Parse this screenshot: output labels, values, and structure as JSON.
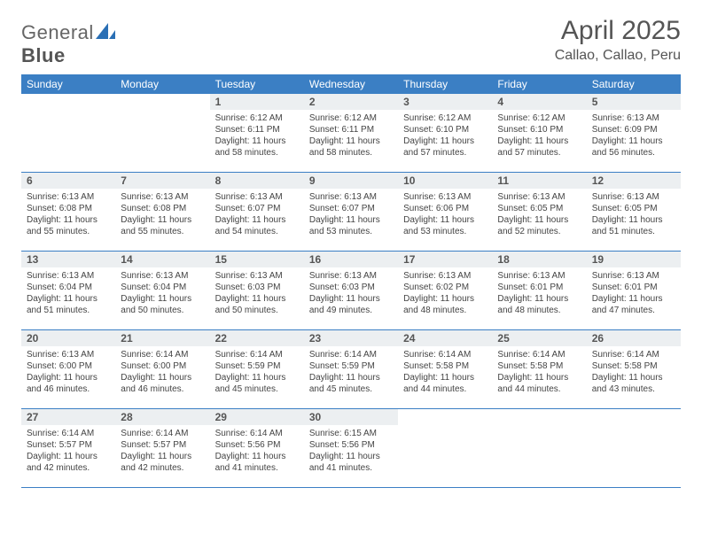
{
  "brand": {
    "part1": "General",
    "part2": "Blue"
  },
  "title": "April 2025",
  "location": "Callao, Callao, Peru",
  "colors": {
    "header_bg": "#3b7fc4",
    "header_text": "#ffffff",
    "daynum_bg": "#eceff1",
    "border": "#3b7fc4",
    "logo_blue": "#2a6fb5"
  },
  "dayNames": [
    "Sunday",
    "Monday",
    "Tuesday",
    "Wednesday",
    "Thursday",
    "Friday",
    "Saturday"
  ],
  "weeks": [
    [
      null,
      null,
      {
        "n": "1",
        "sr": "Sunrise: 6:12 AM",
        "ss": "Sunset: 6:11 PM",
        "dl": "Daylight: 11 hours and 58 minutes."
      },
      {
        "n": "2",
        "sr": "Sunrise: 6:12 AM",
        "ss": "Sunset: 6:11 PM",
        "dl": "Daylight: 11 hours and 58 minutes."
      },
      {
        "n": "3",
        "sr": "Sunrise: 6:12 AM",
        "ss": "Sunset: 6:10 PM",
        "dl": "Daylight: 11 hours and 57 minutes."
      },
      {
        "n": "4",
        "sr": "Sunrise: 6:12 AM",
        "ss": "Sunset: 6:10 PM",
        "dl": "Daylight: 11 hours and 57 minutes."
      },
      {
        "n": "5",
        "sr": "Sunrise: 6:13 AM",
        "ss": "Sunset: 6:09 PM",
        "dl": "Daylight: 11 hours and 56 minutes."
      }
    ],
    [
      {
        "n": "6",
        "sr": "Sunrise: 6:13 AM",
        "ss": "Sunset: 6:08 PM",
        "dl": "Daylight: 11 hours and 55 minutes."
      },
      {
        "n": "7",
        "sr": "Sunrise: 6:13 AM",
        "ss": "Sunset: 6:08 PM",
        "dl": "Daylight: 11 hours and 55 minutes."
      },
      {
        "n": "8",
        "sr": "Sunrise: 6:13 AM",
        "ss": "Sunset: 6:07 PM",
        "dl": "Daylight: 11 hours and 54 minutes."
      },
      {
        "n": "9",
        "sr": "Sunrise: 6:13 AM",
        "ss": "Sunset: 6:07 PM",
        "dl": "Daylight: 11 hours and 53 minutes."
      },
      {
        "n": "10",
        "sr": "Sunrise: 6:13 AM",
        "ss": "Sunset: 6:06 PM",
        "dl": "Daylight: 11 hours and 53 minutes."
      },
      {
        "n": "11",
        "sr": "Sunrise: 6:13 AM",
        "ss": "Sunset: 6:05 PM",
        "dl": "Daylight: 11 hours and 52 minutes."
      },
      {
        "n": "12",
        "sr": "Sunrise: 6:13 AM",
        "ss": "Sunset: 6:05 PM",
        "dl": "Daylight: 11 hours and 51 minutes."
      }
    ],
    [
      {
        "n": "13",
        "sr": "Sunrise: 6:13 AM",
        "ss": "Sunset: 6:04 PM",
        "dl": "Daylight: 11 hours and 51 minutes."
      },
      {
        "n": "14",
        "sr": "Sunrise: 6:13 AM",
        "ss": "Sunset: 6:04 PM",
        "dl": "Daylight: 11 hours and 50 minutes."
      },
      {
        "n": "15",
        "sr": "Sunrise: 6:13 AM",
        "ss": "Sunset: 6:03 PM",
        "dl": "Daylight: 11 hours and 50 minutes."
      },
      {
        "n": "16",
        "sr": "Sunrise: 6:13 AM",
        "ss": "Sunset: 6:03 PM",
        "dl": "Daylight: 11 hours and 49 minutes."
      },
      {
        "n": "17",
        "sr": "Sunrise: 6:13 AM",
        "ss": "Sunset: 6:02 PM",
        "dl": "Daylight: 11 hours and 48 minutes."
      },
      {
        "n": "18",
        "sr": "Sunrise: 6:13 AM",
        "ss": "Sunset: 6:01 PM",
        "dl": "Daylight: 11 hours and 48 minutes."
      },
      {
        "n": "19",
        "sr": "Sunrise: 6:13 AM",
        "ss": "Sunset: 6:01 PM",
        "dl": "Daylight: 11 hours and 47 minutes."
      }
    ],
    [
      {
        "n": "20",
        "sr": "Sunrise: 6:13 AM",
        "ss": "Sunset: 6:00 PM",
        "dl": "Daylight: 11 hours and 46 minutes."
      },
      {
        "n": "21",
        "sr": "Sunrise: 6:14 AM",
        "ss": "Sunset: 6:00 PM",
        "dl": "Daylight: 11 hours and 46 minutes."
      },
      {
        "n": "22",
        "sr": "Sunrise: 6:14 AM",
        "ss": "Sunset: 5:59 PM",
        "dl": "Daylight: 11 hours and 45 minutes."
      },
      {
        "n": "23",
        "sr": "Sunrise: 6:14 AM",
        "ss": "Sunset: 5:59 PM",
        "dl": "Daylight: 11 hours and 45 minutes."
      },
      {
        "n": "24",
        "sr": "Sunrise: 6:14 AM",
        "ss": "Sunset: 5:58 PM",
        "dl": "Daylight: 11 hours and 44 minutes."
      },
      {
        "n": "25",
        "sr": "Sunrise: 6:14 AM",
        "ss": "Sunset: 5:58 PM",
        "dl": "Daylight: 11 hours and 44 minutes."
      },
      {
        "n": "26",
        "sr": "Sunrise: 6:14 AM",
        "ss": "Sunset: 5:58 PM",
        "dl": "Daylight: 11 hours and 43 minutes."
      }
    ],
    [
      {
        "n": "27",
        "sr": "Sunrise: 6:14 AM",
        "ss": "Sunset: 5:57 PM",
        "dl": "Daylight: 11 hours and 42 minutes."
      },
      {
        "n": "28",
        "sr": "Sunrise: 6:14 AM",
        "ss": "Sunset: 5:57 PM",
        "dl": "Daylight: 11 hours and 42 minutes."
      },
      {
        "n": "29",
        "sr": "Sunrise: 6:14 AM",
        "ss": "Sunset: 5:56 PM",
        "dl": "Daylight: 11 hours and 41 minutes."
      },
      {
        "n": "30",
        "sr": "Sunrise: 6:15 AM",
        "ss": "Sunset: 5:56 PM",
        "dl": "Daylight: 11 hours and 41 minutes."
      },
      null,
      null,
      null
    ]
  ]
}
